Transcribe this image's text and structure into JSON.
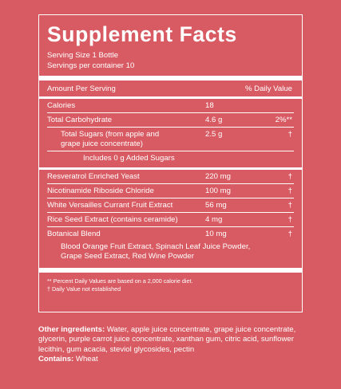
{
  "panel": {
    "title": "Supplement Facts",
    "serving_size": "Serving Size 1 Bottle",
    "servings_per_container": "Servings per container 10",
    "amount_per_serving": "Amount Per Serving",
    "daily_value_header": "% Daily Value"
  },
  "rows": [
    {
      "name": "Calories",
      "amount": "18",
      "dv": ""
    },
    {
      "name": "Total Carbohydrate",
      "amount": "4.6 g",
      "dv": "2%**"
    },
    {
      "name_line1": "Total Sugars (from apple and",
      "name_line2": "grape juice concentrate)",
      "amount": "2.5 g",
      "dv": "†"
    },
    {
      "name": "Includes 0 g Added Sugars"
    }
  ],
  "ingredients": [
    {
      "name": "Resveratrol Enriched Yeast",
      "amount": "220 mg",
      "dv": "†"
    },
    {
      "name": "Nicotinamide Riboside Chloride",
      "amount": "100 mg",
      "dv": "†"
    },
    {
      "name": "White Versailles Currant Fruit Extract",
      "amount": "56 mg",
      "dv": "†"
    },
    {
      "name": "Rice Seed Extract (contains ceramide)",
      "amount": "4 mg",
      "dv": "†"
    },
    {
      "name": "Botanical Blend",
      "amount": "10 mg",
      "dv": "†"
    }
  ],
  "blend": {
    "line1": "Blood Orange Fruit Extract, Spinach Leaf Juice Powder,",
    "line2": "Grape Seed Extract, Red Wine Powder"
  },
  "footnotes": {
    "percent": "** Percent Daily Values are based on a 2,000 calorie diet.",
    "dagger": "† Daily Value not established"
  },
  "other": {
    "label": "Other ingredients:",
    "text": " Water, apple juice concentrate, grape juice concentrate, glycerin, purple carrot juice concentrate, xanthan gum, citric acid, sunflower lecithin, gum acacia, steviol glycosides, pectin",
    "contains_label": "Contains:",
    "contains_text": " Wheat"
  },
  "colors": {
    "background": "#d85a62",
    "text": "#ffffff"
  }
}
